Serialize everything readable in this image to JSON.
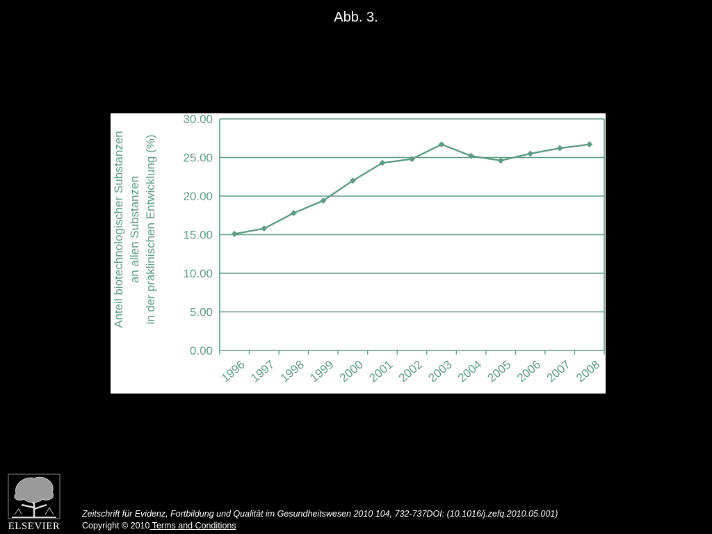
{
  "slide": {
    "title": "Abb. 3."
  },
  "chart_data": {
    "type": "line",
    "title": "",
    "ylabel_lines": [
      "Anteil  biotechnologischer Substanzen",
      "an allen Substanzen",
      "in der präklinischen Entwicklung (%)"
    ],
    "xlabel": "",
    "categories": [
      "1996",
      "1997",
      "1998",
      "1999",
      "2000",
      "2001",
      "2002",
      "2003",
      "2004",
      "2005",
      "2006",
      "2007",
      "2008"
    ],
    "values": [
      15.1,
      15.8,
      17.8,
      19.4,
      22.0,
      24.3,
      24.8,
      26.7,
      25.2,
      24.6,
      25.5,
      26.2,
      26.7
    ],
    "yticks": [
      "0.00",
      "5.00",
      "10.00",
      "15.00",
      "20.00",
      "25.00",
      "30.00"
    ],
    "ylim": [
      0,
      30
    ],
    "grid": true,
    "color": "#5e9b82"
  },
  "footer": {
    "citation": "Zeitschrift für Evidenz, Fortbildung und Qualität im Gesundheitswesen 2010 104, 732-737DOI: (10.1016/j.zefq.2010.05.001)",
    "copyright": "Copyright © 2010",
    "terms_link": " Terms and Conditions"
  },
  "logo": {
    "wordmark": "ELSEVIER",
    "icon": "elsevier-tree-icon"
  }
}
